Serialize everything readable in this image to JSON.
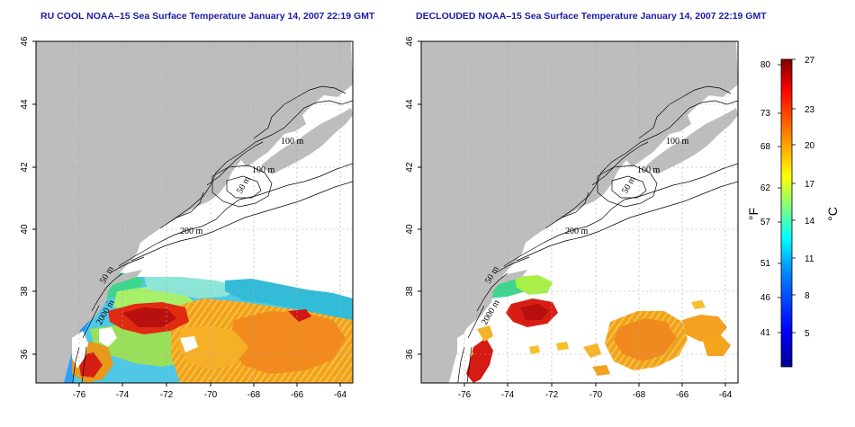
{
  "maps": [
    {
      "title": "RU COOL NOAA–15 Sea Surface Temperature January 14, 2007 22:19 GMT",
      "lat_ticks": [
        "46",
        "44",
        "42",
        "40",
        "38",
        "36"
      ],
      "lon_ticks": [
        "-76",
        "-74",
        "-72",
        "-70",
        "-68",
        "-66",
        "-64"
      ],
      "contour_labels": [
        "100 m",
        "100 m",
        "50 m",
        "200 m",
        "50 m",
        "2000 m"
      ]
    },
    {
      "title": "DECLOUDED NOAA–15 Sea Surface Temperature January 14, 2007 22:19 GMT",
      "lat_ticks": [
        "46",
        "44",
        "42",
        "40",
        "38",
        "36"
      ],
      "lon_ticks": [
        "-76",
        "-74",
        "-72",
        "-70",
        "-68",
        "-66",
        "-64"
      ],
      "contour_labels": [
        "100 m",
        "100 m",
        "50 m",
        "200 m",
        "50 m",
        "2000 m"
      ]
    }
  ],
  "colorbar": {
    "fahrenheit_ticks": [
      "80",
      "73",
      "68",
      "62",
      "57",
      "51",
      "46",
      "41"
    ],
    "celsius_ticks": [
      "27",
      "23",
      "20",
      "17",
      "14",
      "11",
      "8",
      "5"
    ],
    "fahrenheit_label": "°F",
    "celsius_label": "°C",
    "colors": [
      "#00008f",
      "#0000ff",
      "#0080ff",
      "#00ffff",
      "#80ff80",
      "#ffff00",
      "#ff8000",
      "#ff0000",
      "#800000"
    ]
  },
  "colors": {
    "land": "#bdbdbd",
    "ocean": "#ffffff",
    "title": "#1a1aa8",
    "grid": "#a8a8a8"
  }
}
